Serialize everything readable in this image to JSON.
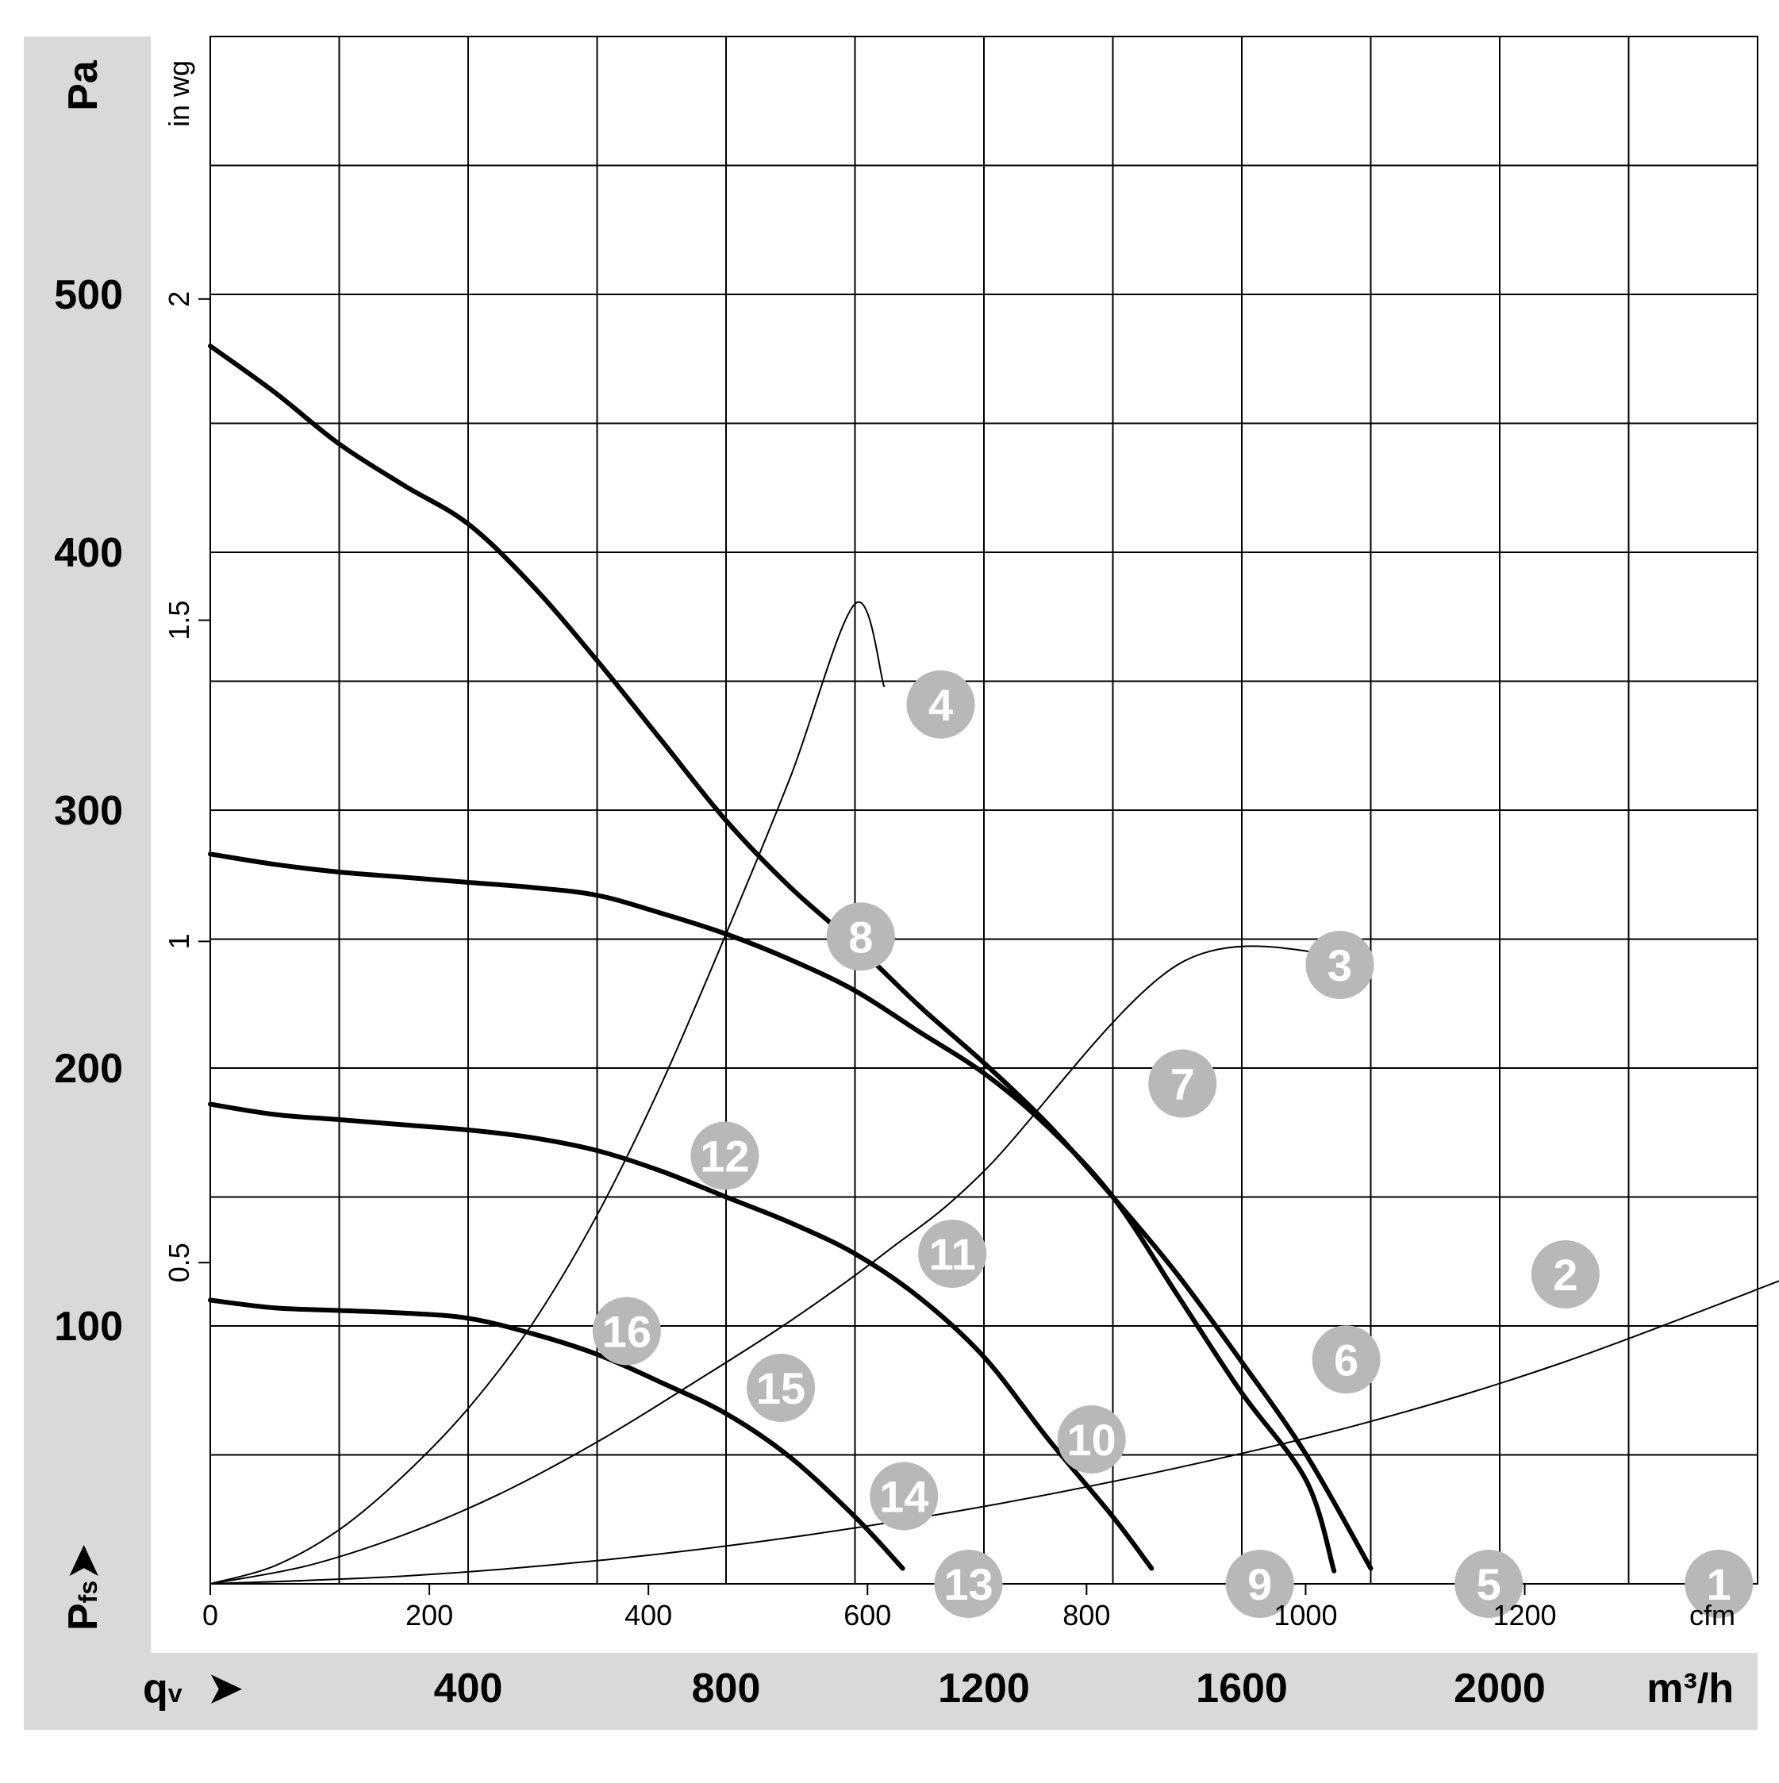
{
  "chart_data": {
    "type": "line",
    "left_axis": {
      "unit": "Pa",
      "symbol": "P",
      "symbol_sub": "fs",
      "arrow": "➤",
      "ticks": [
        "100",
        "200",
        "300",
        "400",
        "500"
      ],
      "range": [
        0,
        600
      ]
    },
    "inner_axis": {
      "unit": "in wg",
      "ticks": [
        "0.5",
        "1",
        "1.5",
        "2"
      ],
      "range": [
        0,
        2.4086
      ]
    },
    "x_axis_cfm": {
      "unit": "cfm",
      "ticks": [
        "0",
        "200",
        "400",
        "600",
        "800",
        "1000",
        "1200"
      ],
      "range": [
        0,
        1412.6
      ]
    },
    "x_axis_m3h": {
      "unit": "m³/h",
      "symbol": "q",
      "symbol_sub": "v",
      "arrow": "➤",
      "ticks": [
        "400",
        "800",
        "1200",
        "1600",
        "2000"
      ],
      "range": [
        0,
        2400
      ]
    },
    "grid": true,
    "series": [
      {
        "points": [
          [
            0,
            480
          ],
          [
            100,
            462
          ],
          [
            200,
            442
          ],
          [
            300,
            426
          ],
          [
            400,
            411
          ],
          [
            500,
            387
          ],
          [
            600,
            358
          ],
          [
            700,
            327
          ],
          [
            800,
            296
          ],
          [
            900,
            270
          ],
          [
            1000,
            248
          ],
          [
            1100,
            224
          ],
          [
            1200,
            202
          ],
          [
            1300,
            178
          ],
          [
            1400,
            150
          ],
          [
            1500,
            120
          ],
          [
            1600,
            86
          ],
          [
            1700,
            50
          ],
          [
            1800,
            6
          ]
        ]
      },
      {
        "points": [
          [
            0,
            283
          ],
          [
            100,
            279
          ],
          [
            200,
            276
          ],
          [
            300,
            274
          ],
          [
            400,
            272
          ],
          [
            500,
            270
          ],
          [
            600,
            267
          ],
          [
            700,
            260
          ],
          [
            800,
            252
          ],
          [
            900,
            242
          ],
          [
            1000,
            230
          ],
          [
            1100,
            214
          ],
          [
            1200,
            198
          ],
          [
            1300,
            177
          ],
          [
            1400,
            150
          ],
          [
            1500,
            112
          ],
          [
            1600,
            74
          ],
          [
            1700,
            40
          ],
          [
            1743,
            5
          ]
        ]
      },
      {
        "points": [
          [
            0,
            186
          ],
          [
            100,
            182
          ],
          [
            200,
            180
          ],
          [
            300,
            178
          ],
          [
            400,
            176
          ],
          [
            500,
            173
          ],
          [
            600,
            168
          ],
          [
            700,
            160
          ],
          [
            800,
            150
          ],
          [
            900,
            140
          ],
          [
            1000,
            128
          ],
          [
            1100,
            111
          ],
          [
            1200,
            88
          ],
          [
            1300,
            56
          ],
          [
            1400,
            26
          ],
          [
            1460,
            6
          ]
        ]
      },
      {
        "points": [
          [
            0,
            110
          ],
          [
            100,
            107
          ],
          [
            200,
            106
          ],
          [
            300,
            105
          ],
          [
            400,
            103
          ],
          [
            500,
            97
          ],
          [
            600,
            89
          ],
          [
            700,
            78
          ],
          [
            800,
            66
          ],
          [
            900,
            49
          ],
          [
            1000,
            26
          ],
          [
            1074,
            6
          ]
        ]
      },
      {
        "points": [
          [
            0,
            0
          ],
          [
            300,
            3
          ],
          [
            600,
            9
          ],
          [
            900,
            18
          ],
          [
            1200,
            30
          ],
          [
            1500,
            45
          ],
          [
            1800,
            63
          ],
          [
            2100,
            86
          ],
          [
            2460,
            120
          ]
        ]
      },
      {
        "points": [
          [
            0,
            0
          ],
          [
            150,
            7
          ],
          [
            300,
            19
          ],
          [
            450,
            35
          ],
          [
            600,
            55
          ],
          [
            750,
            78
          ],
          [
            900,
            102
          ],
          [
            1050,
            129
          ],
          [
            1200,
            160
          ],
          [
            1500,
            240
          ],
          [
            1752,
            244
          ]
        ]
      },
      {
        "points": [
          [
            0,
            0
          ],
          [
            100,
            7
          ],
          [
            200,
            21
          ],
          [
            300,
            42
          ],
          [
            400,
            68
          ],
          [
            500,
            101
          ],
          [
            600,
            143
          ],
          [
            700,
            194
          ],
          [
            800,
            252
          ],
          [
            900,
            313
          ],
          [
            1000,
            380
          ],
          [
            1045,
            348
          ]
        ]
      }
    ],
    "markers": [
      {
        "label": "1",
        "x": 2340,
        "y": 0
      },
      {
        "label": "2",
        "x": 2102,
        "y": 120
      },
      {
        "label": "3",
        "x": 1752,
        "y": 240
      },
      {
        "label": "4",
        "x": 1133,
        "y": 341
      },
      {
        "label": "5",
        "x": 1983,
        "y": 0
      },
      {
        "label": "6",
        "x": 1762,
        "y": 87
      },
      {
        "label": "7",
        "x": 1508,
        "y": 194
      },
      {
        "label": "8",
        "x": 1009,
        "y": 251
      },
      {
        "label": "9",
        "x": 1628,
        "y": 0
      },
      {
        "label": "10",
        "x": 1367,
        "y": 56
      },
      {
        "label": "11",
        "x": 1151,
        "y": 128
      },
      {
        "label": "12",
        "x": 798,
        "y": 166
      },
      {
        "label": "13",
        "x": 1176,
        "y": 0
      },
      {
        "label": "14",
        "x": 1076,
        "y": 34
      },
      {
        "label": "15",
        "x": 885,
        "y": 76
      },
      {
        "label": "16",
        "x": 646,
        "y": 98
      }
    ],
    "colors": {
      "curve": "#000000",
      "marker_fill": "#b8b8b8",
      "marker_text": "#ffffff",
      "band": "#d9d9d9"
    }
  }
}
